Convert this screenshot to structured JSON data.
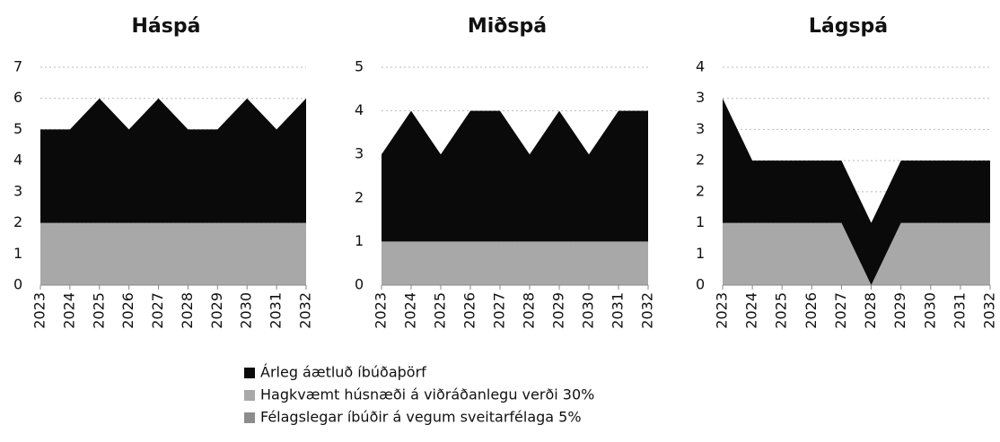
{
  "chart_data": [
    {
      "type": "area",
      "stacked": true,
      "title": "Háspá",
      "categories": [
        "2023",
        "2024",
        "2025",
        "2026",
        "2027",
        "2028",
        "2029",
        "2030",
        "2031",
        "2032"
      ],
      "ylim": [
        0,
        7
      ],
      "yticks": [
        0,
        1,
        2,
        3,
        4,
        5,
        6,
        7
      ],
      "grid": true,
      "series": [
        {
          "name": "Árleg áætluð íbúðaþörf",
          "color": "#0a0a0a",
          "values": [
            3,
            3,
            4,
            3,
            4,
            3,
            3,
            4,
            3,
            4
          ]
        },
        {
          "name": "Hagkvæmt húsnæði á viðráðanlegu verði 30%",
          "color": "#a8a8a8",
          "values": [
            2,
            2,
            2,
            2,
            2,
            2,
            2,
            2,
            2,
            2
          ]
        },
        {
          "name": "Félagslegar íbúðir á vegum sveitarfélaga 5%",
          "color": "#8c8c8c",
          "values": [
            0,
            0,
            0,
            0,
            0,
            0,
            0,
            0,
            0,
            0
          ]
        }
      ]
    },
    {
      "type": "area",
      "stacked": true,
      "title": "Miðspá",
      "categories": [
        "2023",
        "2024",
        "2025",
        "2026",
        "2027",
        "2028",
        "2029",
        "2030",
        "2031",
        "2032"
      ],
      "ylim": [
        0,
        5
      ],
      "yticks": [
        0,
        1,
        2,
        3,
        4,
        5
      ],
      "grid": true,
      "series": [
        {
          "color": "#0a0a0a",
          "values": [
            2,
            3,
            2,
            3,
            3,
            2,
            3,
            2,
            3,
            3
          ]
        },
        {
          "color": "#a8a8a8",
          "values": [
            1,
            1,
            1,
            1,
            1,
            1,
            1,
            1,
            1,
            1
          ]
        },
        {
          "color": "#8c8c8c",
          "values": [
            0,
            0,
            0,
            0,
            0,
            0,
            0,
            0,
            0,
            0
          ]
        }
      ]
    },
    {
      "type": "area",
      "stacked": true,
      "title": "Lágspá",
      "categories": [
        "2023",
        "2024",
        "2025",
        "2026",
        "2027",
        "2028",
        "2029",
        "2030",
        "2031",
        "2032"
      ],
      "ylim": [
        0,
        3.5
      ],
      "yticks": [
        0,
        {
          "value": 0.5,
          "label": "1"
        },
        1,
        {
          "value": 1.5,
          "label": "2"
        },
        2,
        {
          "value": 2.5,
          "label": "3"
        },
        3,
        {
          "value": 3.5,
          "label": "4"
        }
      ],
      "grid": true,
      "series": [
        {
          "color": "#0a0a0a",
          "values": [
            2,
            1,
            1,
            1,
            1,
            1,
            1,
            1,
            1,
            1
          ]
        },
        {
          "color": "#a8a8a8",
          "values": [
            1,
            1,
            1,
            1,
            1,
            0,
            1,
            1,
            1,
            1
          ]
        },
        {
          "color": "#8c8c8c",
          "values": [
            0,
            0,
            0,
            0,
            0,
            0,
            0,
            0,
            0,
            0
          ]
        }
      ]
    }
  ]
}
